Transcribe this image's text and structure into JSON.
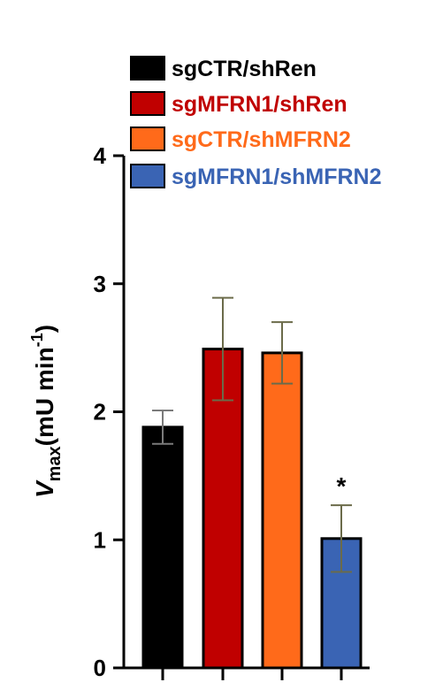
{
  "chart_data": {
    "type": "bar",
    "categories": [
      "sgCTR/shRen",
      "sgMFRN1/shRen",
      "sgCTR/shMFRN2",
      "sgMFRN1/shMFRN2"
    ],
    "values": [
      1.88,
      2.49,
      2.46,
      1.01
    ],
    "errors": [
      0.13,
      0.4,
      0.24,
      0.26
    ],
    "colors": [
      "#000000",
      "#c00000",
      "#ff6a1a",
      "#3a64b4"
    ],
    "legend_text_colors": [
      "#000000",
      "#c00000",
      "#ff6a1a",
      "#3a64b4"
    ],
    "significance": [
      "",
      "",
      "",
      "*"
    ],
    "ylabel": {
      "var": "V",
      "sub": "max",
      "rest": "(mU min",
      "sup": "-1",
      "close": ")"
    },
    "ylim": [
      0,
      4
    ],
    "yticks": [
      "0",
      "1",
      "2",
      "3",
      "4"
    ],
    "legend_position": "top",
    "grid": false
  }
}
